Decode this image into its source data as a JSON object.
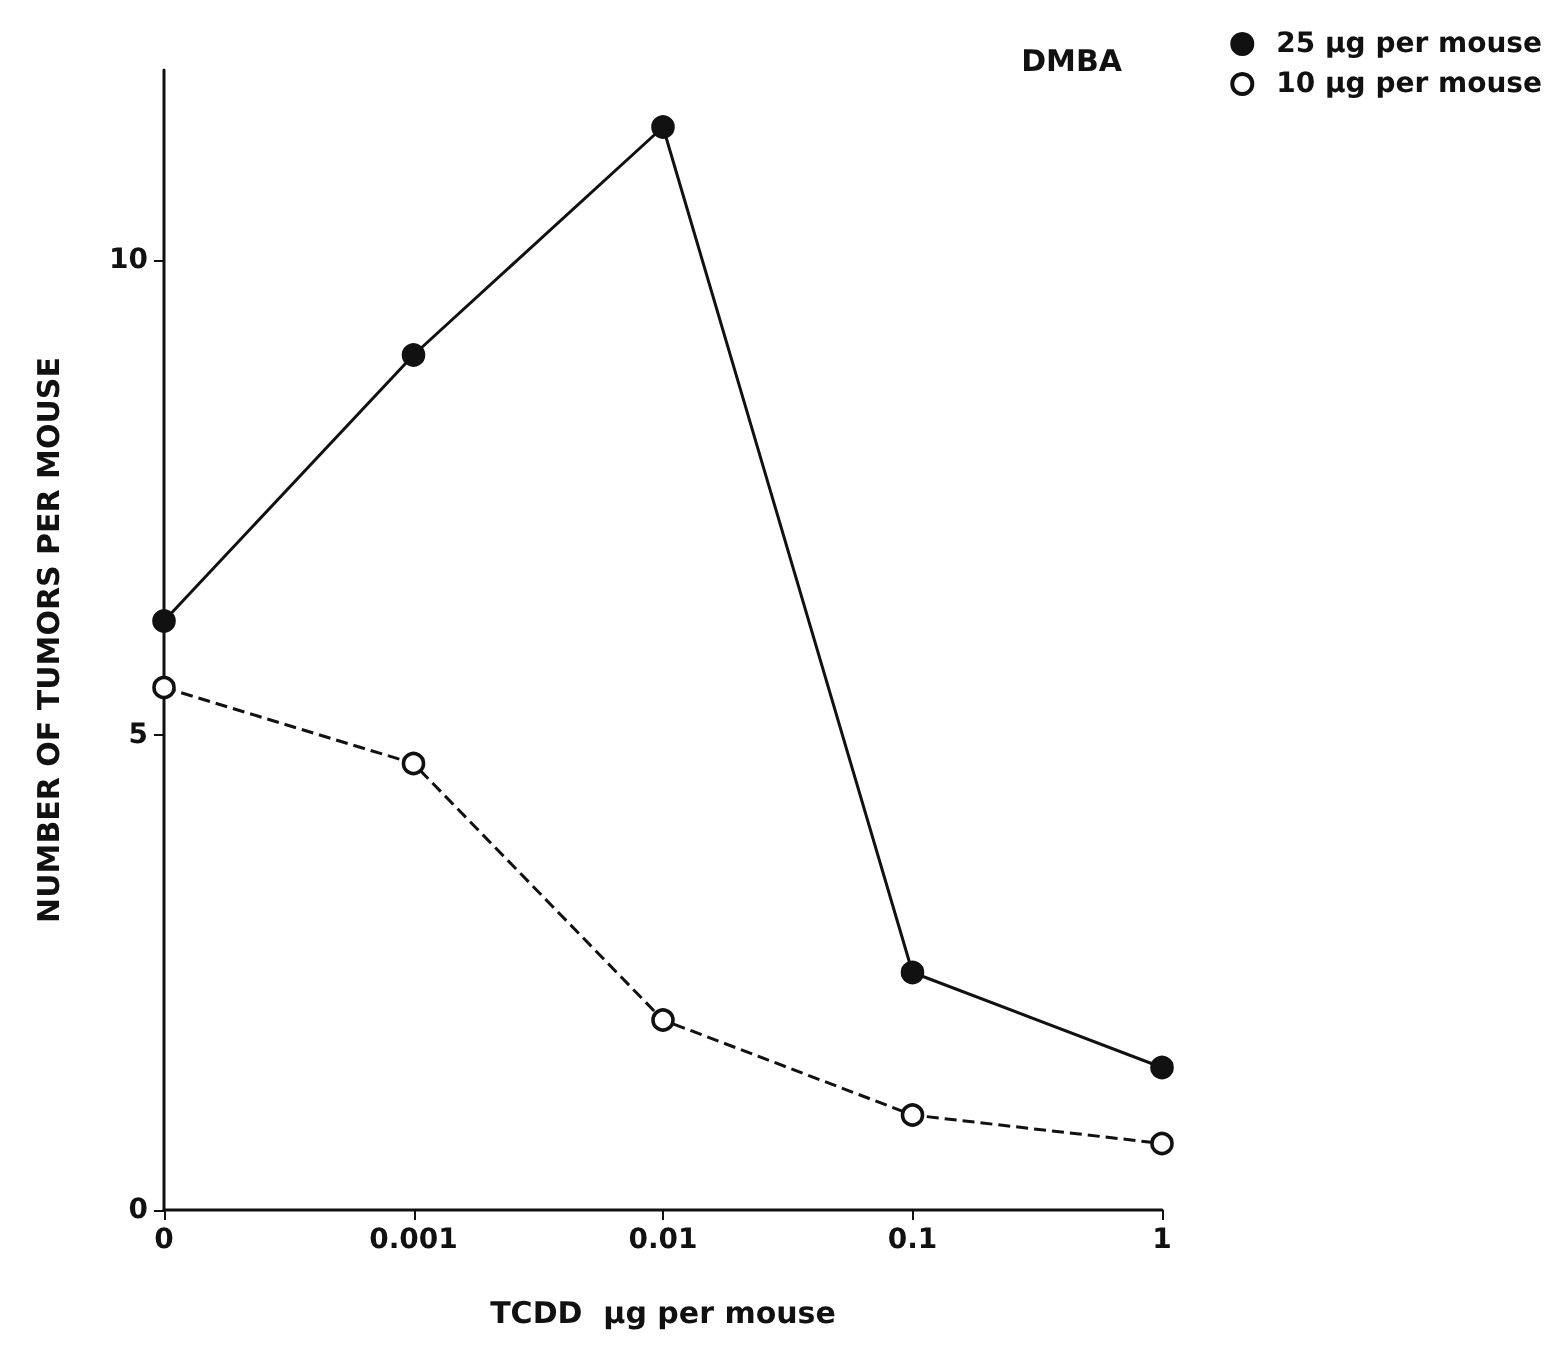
{
  "chart_data": {
    "type": "line",
    "xlabel": "TCDD  µg per mouse",
    "ylabel": "NUMBER OF TUMORS PER MOUSE",
    "legend_title": "DMBA",
    "categories": [
      "0",
      "0.001",
      "0.01",
      "0.1",
      "1"
    ],
    "series": [
      {
        "name": "25 µg per mouse",
        "color": "#111111",
        "values": [
          6.2,
          9.0,
          11.4,
          2.5,
          1.5
        ],
        "marker": "circle",
        "line_style": "solid"
      },
      {
        "name": "10 µg per mouse",
        "color": "#111111",
        "values": [
          5.5,
          4.7,
          2.0,
          1.0,
          0.7
        ],
        "marker": "circle",
        "line_style": "dashed"
      }
    ],
    "ylim": [
      0,
      12
    ],
    "yticks": [
      0,
      5,
      10
    ],
    "grid": false,
    "legend": "top right"
  }
}
